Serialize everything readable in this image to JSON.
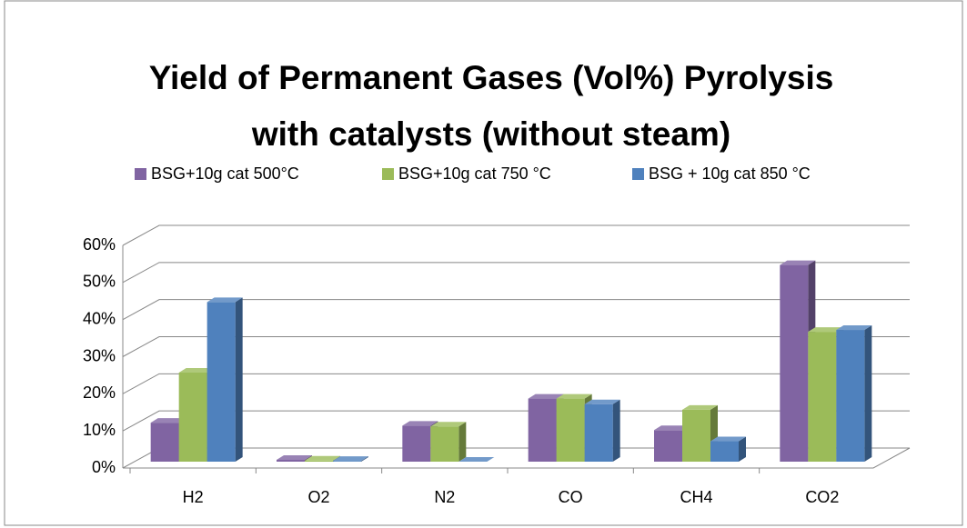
{
  "chart_data": {
    "type": "bar3d",
    "title": [
      "Yield of Permanent Gases (Vol%) Pyrolysis",
      "with catalysts (without steam)"
    ],
    "categories": [
      "H2",
      "O2",
      "N2",
      "CO",
      "CH4",
      "CO2"
    ],
    "series": [
      {
        "name": "BSG+10g cat 500°C",
        "color": "#8064a2",
        "values": [
          10.5,
          0.5,
          9.7,
          17,
          8.5,
          53
        ]
      },
      {
        "name": "BSG+10g cat 750 °C",
        "color": "#9bbb59",
        "values": [
          24,
          0.3,
          9.5,
          17,
          14,
          35
        ]
      },
      {
        "name": "BSG + 10g cat 850 °C",
        "color": "#4f81bd",
        "values": [
          43,
          0.2,
          0,
          15.5,
          5.5,
          35.5
        ]
      }
    ],
    "ylim": [
      0,
      60
    ],
    "yticks": [
      {
        "value": 0,
        "label": "0%"
      },
      {
        "value": 10,
        "label": "10%"
      },
      {
        "value": 20,
        "label": "20%"
      },
      {
        "value": 30,
        "label": "30%"
      },
      {
        "value": 40,
        "label": "40%"
      },
      {
        "value": 50,
        "label": "50%"
      },
      {
        "value": 60,
        "label": "60%"
      }
    ],
    "grid": true,
    "legend": "top"
  }
}
